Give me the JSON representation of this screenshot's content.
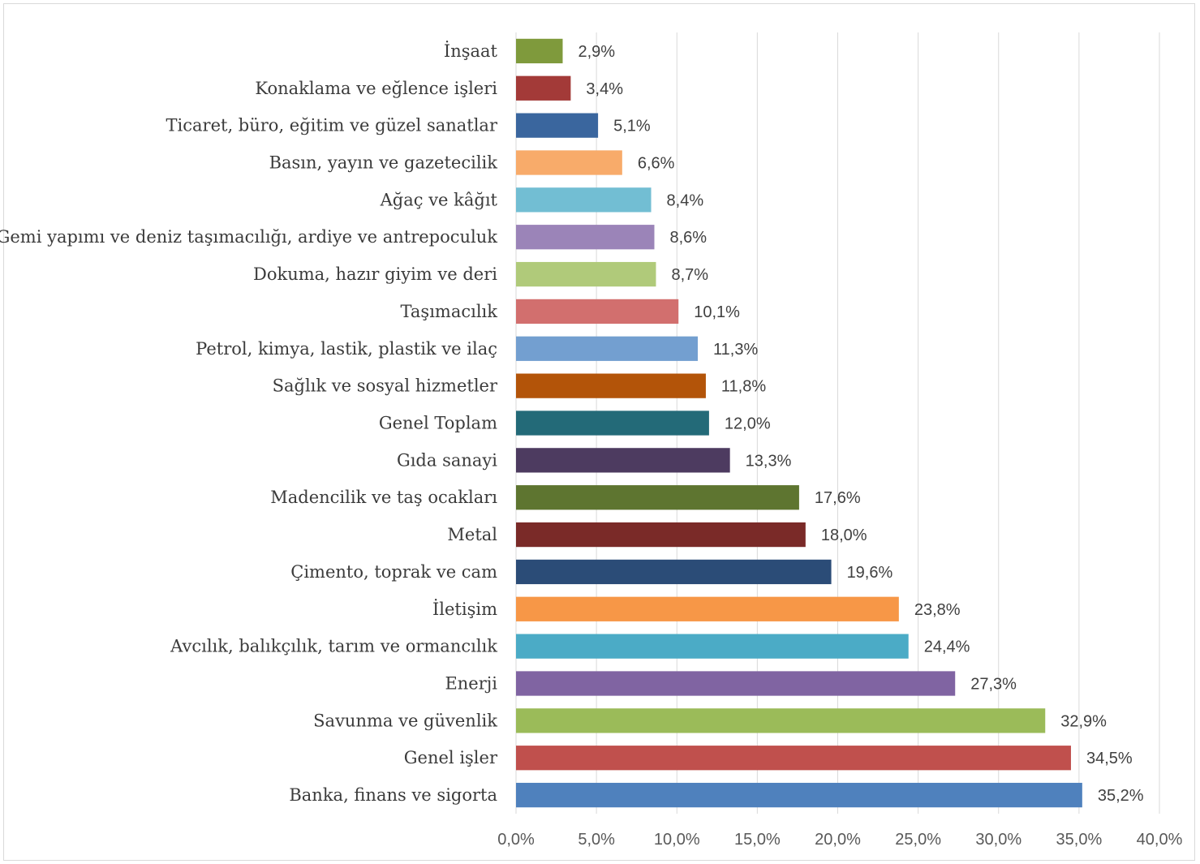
{
  "chart_data": {
    "type": "bar",
    "orientation": "horizontal",
    "categories": [
      "İnşaat",
      "Konaklama ve eğlence işleri",
      "Ticaret, büro, eğitim ve güzel sanatlar",
      "Basın, yayın ve gazetecilik",
      "Ağaç ve kâğıt",
      "Gemi yapımı ve deniz taşımacılığı, ardiye ve antrepoculuk",
      "Dokuma, hazır giyim ve deri",
      "Taşımacılık",
      "Petrol, kimya, lastik, plastik ve ilaç",
      "Sağlık ve sosyal hizmetler",
      "Genel Toplam",
      "Gıda sanayi",
      "Madencilik ve taş ocakları",
      "Metal",
      "Çimento, toprak ve cam",
      "İletişim",
      "Avcılık, balıkçılık, tarım ve ormancılık",
      "Enerji",
      "Savunma ve güvenlik",
      "Genel işler",
      "Banka, finans ve sigorta"
    ],
    "values": [
      2.9,
      3.4,
      5.1,
      6.6,
      8.4,
      8.6,
      8.7,
      10.1,
      11.3,
      11.8,
      12.0,
      13.3,
      17.6,
      18.0,
      19.6,
      23.8,
      24.4,
      27.3,
      32.9,
      34.5,
      35.2
    ],
    "value_labels": [
      "2,9%",
      "3,4%",
      "5,1%",
      "6,6%",
      "8,4%",
      "8,6%",
      "8,7%",
      "10,1%",
      "11,3%",
      "11,8%",
      "12,0%",
      "13,3%",
      "17,6%",
      "18,0%",
      "19,6%",
      "23,8%",
      "24,4%",
      "27,3%",
      "32,9%",
      "34,5%",
      "35,2%"
    ],
    "colors": [
      "#7f9a3c",
      "#a33a38",
      "#3a669e",
      "#f8ab6a",
      "#72bed3",
      "#9b84b8",
      "#b0ca7a",
      "#d26f6e",
      "#739fd0",
      "#b35409",
      "#236a78",
      "#4d3b60",
      "#5e7530",
      "#7a2a28",
      "#2b4c77",
      "#f79747",
      "#4babc6",
      "#8064a2",
      "#9bbb59",
      "#c0504d",
      "#4f81bd"
    ],
    "xlim": [
      0,
      40
    ],
    "xticks": [
      "0,0%",
      "5,0%",
      "10,0%",
      "15,0%",
      "20,0%",
      "25,0%",
      "30,0%",
      "35,0%",
      "40,0%"
    ],
    "grid": true,
    "title": "",
    "xlabel": "",
    "ylabel": ""
  }
}
